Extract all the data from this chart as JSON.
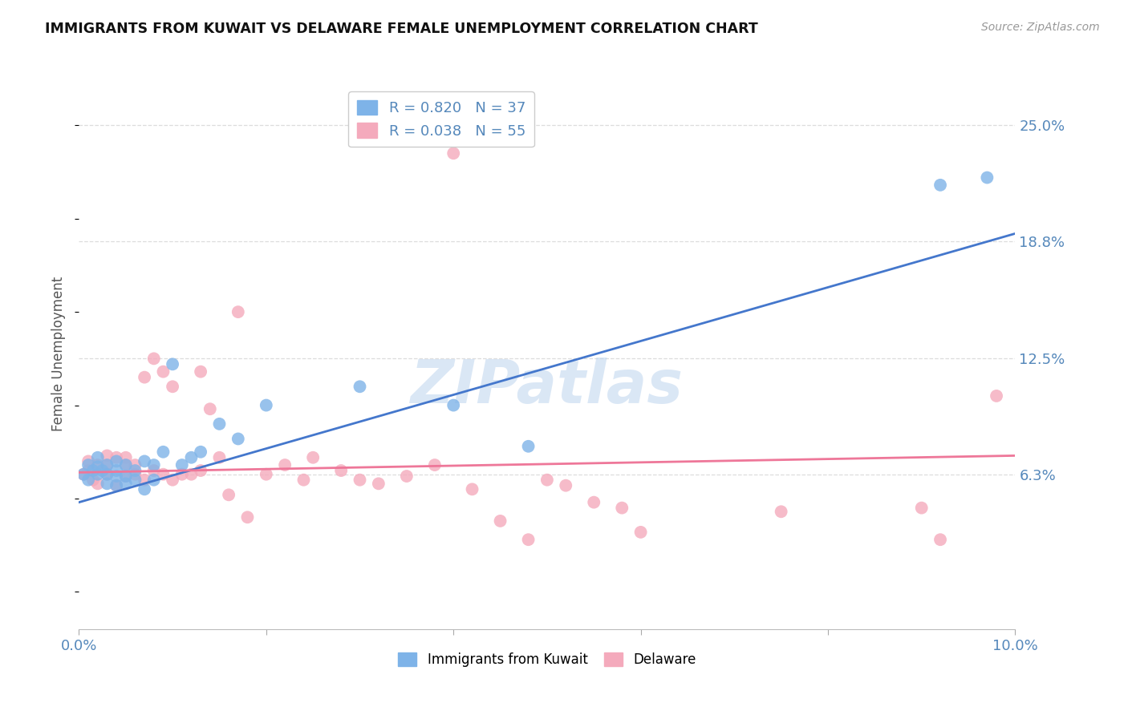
{
  "title": "IMMIGRANTS FROM KUWAIT VS DELAWARE FEMALE UNEMPLOYMENT CORRELATION CHART",
  "source": "Source: ZipAtlas.com",
  "ylabel": "Female Unemployment",
  "ytick_labels": [
    "25.0%",
    "18.8%",
    "12.5%",
    "6.3%"
  ],
  "ytick_values": [
    0.25,
    0.188,
    0.125,
    0.063
  ],
  "xlim": [
    0.0,
    0.1
  ],
  "ylim": [
    -0.02,
    0.275
  ],
  "legend_r1": "R = 0.820",
  "legend_n1": "N = 37",
  "legend_r2": "R = 0.038",
  "legend_n2": "N = 55",
  "color_blue": "#7EB3E8",
  "color_pink": "#F4AABC",
  "color_line_blue": "#4477CC",
  "color_line_pink": "#EE7799",
  "watermark": "ZIPatlas",
  "blue_line_x": [
    0.0,
    0.1
  ],
  "blue_line_y": [
    0.048,
    0.192
  ],
  "pink_line_x": [
    0.0,
    0.1
  ],
  "pink_line_y": [
    0.064,
    0.073
  ],
  "blue_points_x": [
    0.0005,
    0.001,
    0.001,
    0.0015,
    0.002,
    0.002,
    0.002,
    0.0025,
    0.003,
    0.003,
    0.003,
    0.004,
    0.004,
    0.004,
    0.004,
    0.005,
    0.005,
    0.005,
    0.006,
    0.006,
    0.007,
    0.007,
    0.008,
    0.008,
    0.009,
    0.01,
    0.011,
    0.012,
    0.013,
    0.015,
    0.017,
    0.02,
    0.03,
    0.04,
    0.048,
    0.092,
    0.097
  ],
  "blue_points_y": [
    0.063,
    0.06,
    0.068,
    0.065,
    0.063,
    0.067,
    0.072,
    0.065,
    0.058,
    0.063,
    0.068,
    0.057,
    0.062,
    0.065,
    0.07,
    0.058,
    0.062,
    0.068,
    0.06,
    0.065,
    0.055,
    0.07,
    0.06,
    0.068,
    0.075,
    0.122,
    0.068,
    0.072,
    0.075,
    0.09,
    0.082,
    0.1,
    0.11,
    0.1,
    0.078,
    0.218,
    0.222
  ],
  "pink_points_x": [
    0.0005,
    0.001,
    0.001,
    0.0015,
    0.002,
    0.002,
    0.003,
    0.003,
    0.003,
    0.004,
    0.004,
    0.005,
    0.005,
    0.005,
    0.006,
    0.006,
    0.007,
    0.007,
    0.008,
    0.008,
    0.009,
    0.009,
    0.01,
    0.01,
    0.011,
    0.012,
    0.013,
    0.013,
    0.014,
    0.015,
    0.016,
    0.017,
    0.018,
    0.02,
    0.022,
    0.024,
    0.025,
    0.028,
    0.03,
    0.032,
    0.035,
    0.038,
    0.04,
    0.042,
    0.045,
    0.048,
    0.05,
    0.052,
    0.055,
    0.058,
    0.06,
    0.075,
    0.09,
    0.092,
    0.098
  ],
  "pink_points_y": [
    0.063,
    0.065,
    0.07,
    0.06,
    0.058,
    0.068,
    0.063,
    0.068,
    0.073,
    0.057,
    0.072,
    0.062,
    0.068,
    0.072,
    0.063,
    0.068,
    0.06,
    0.115,
    0.065,
    0.125,
    0.063,
    0.118,
    0.06,
    0.11,
    0.063,
    0.063,
    0.065,
    0.118,
    0.098,
    0.072,
    0.052,
    0.15,
    0.04,
    0.063,
    0.068,
    0.06,
    0.072,
    0.065,
    0.06,
    0.058,
    0.062,
    0.068,
    0.235,
    0.055,
    0.038,
    0.028,
    0.06,
    0.057,
    0.048,
    0.045,
    0.032,
    0.043,
    0.045,
    0.028,
    0.105
  ],
  "grid_color": "#DDDDDD",
  "spine_color": "#BBBBBB",
  "tick_color": "#AAAAAA",
  "label_color": "#5588BB",
  "title_color": "#111111"
}
